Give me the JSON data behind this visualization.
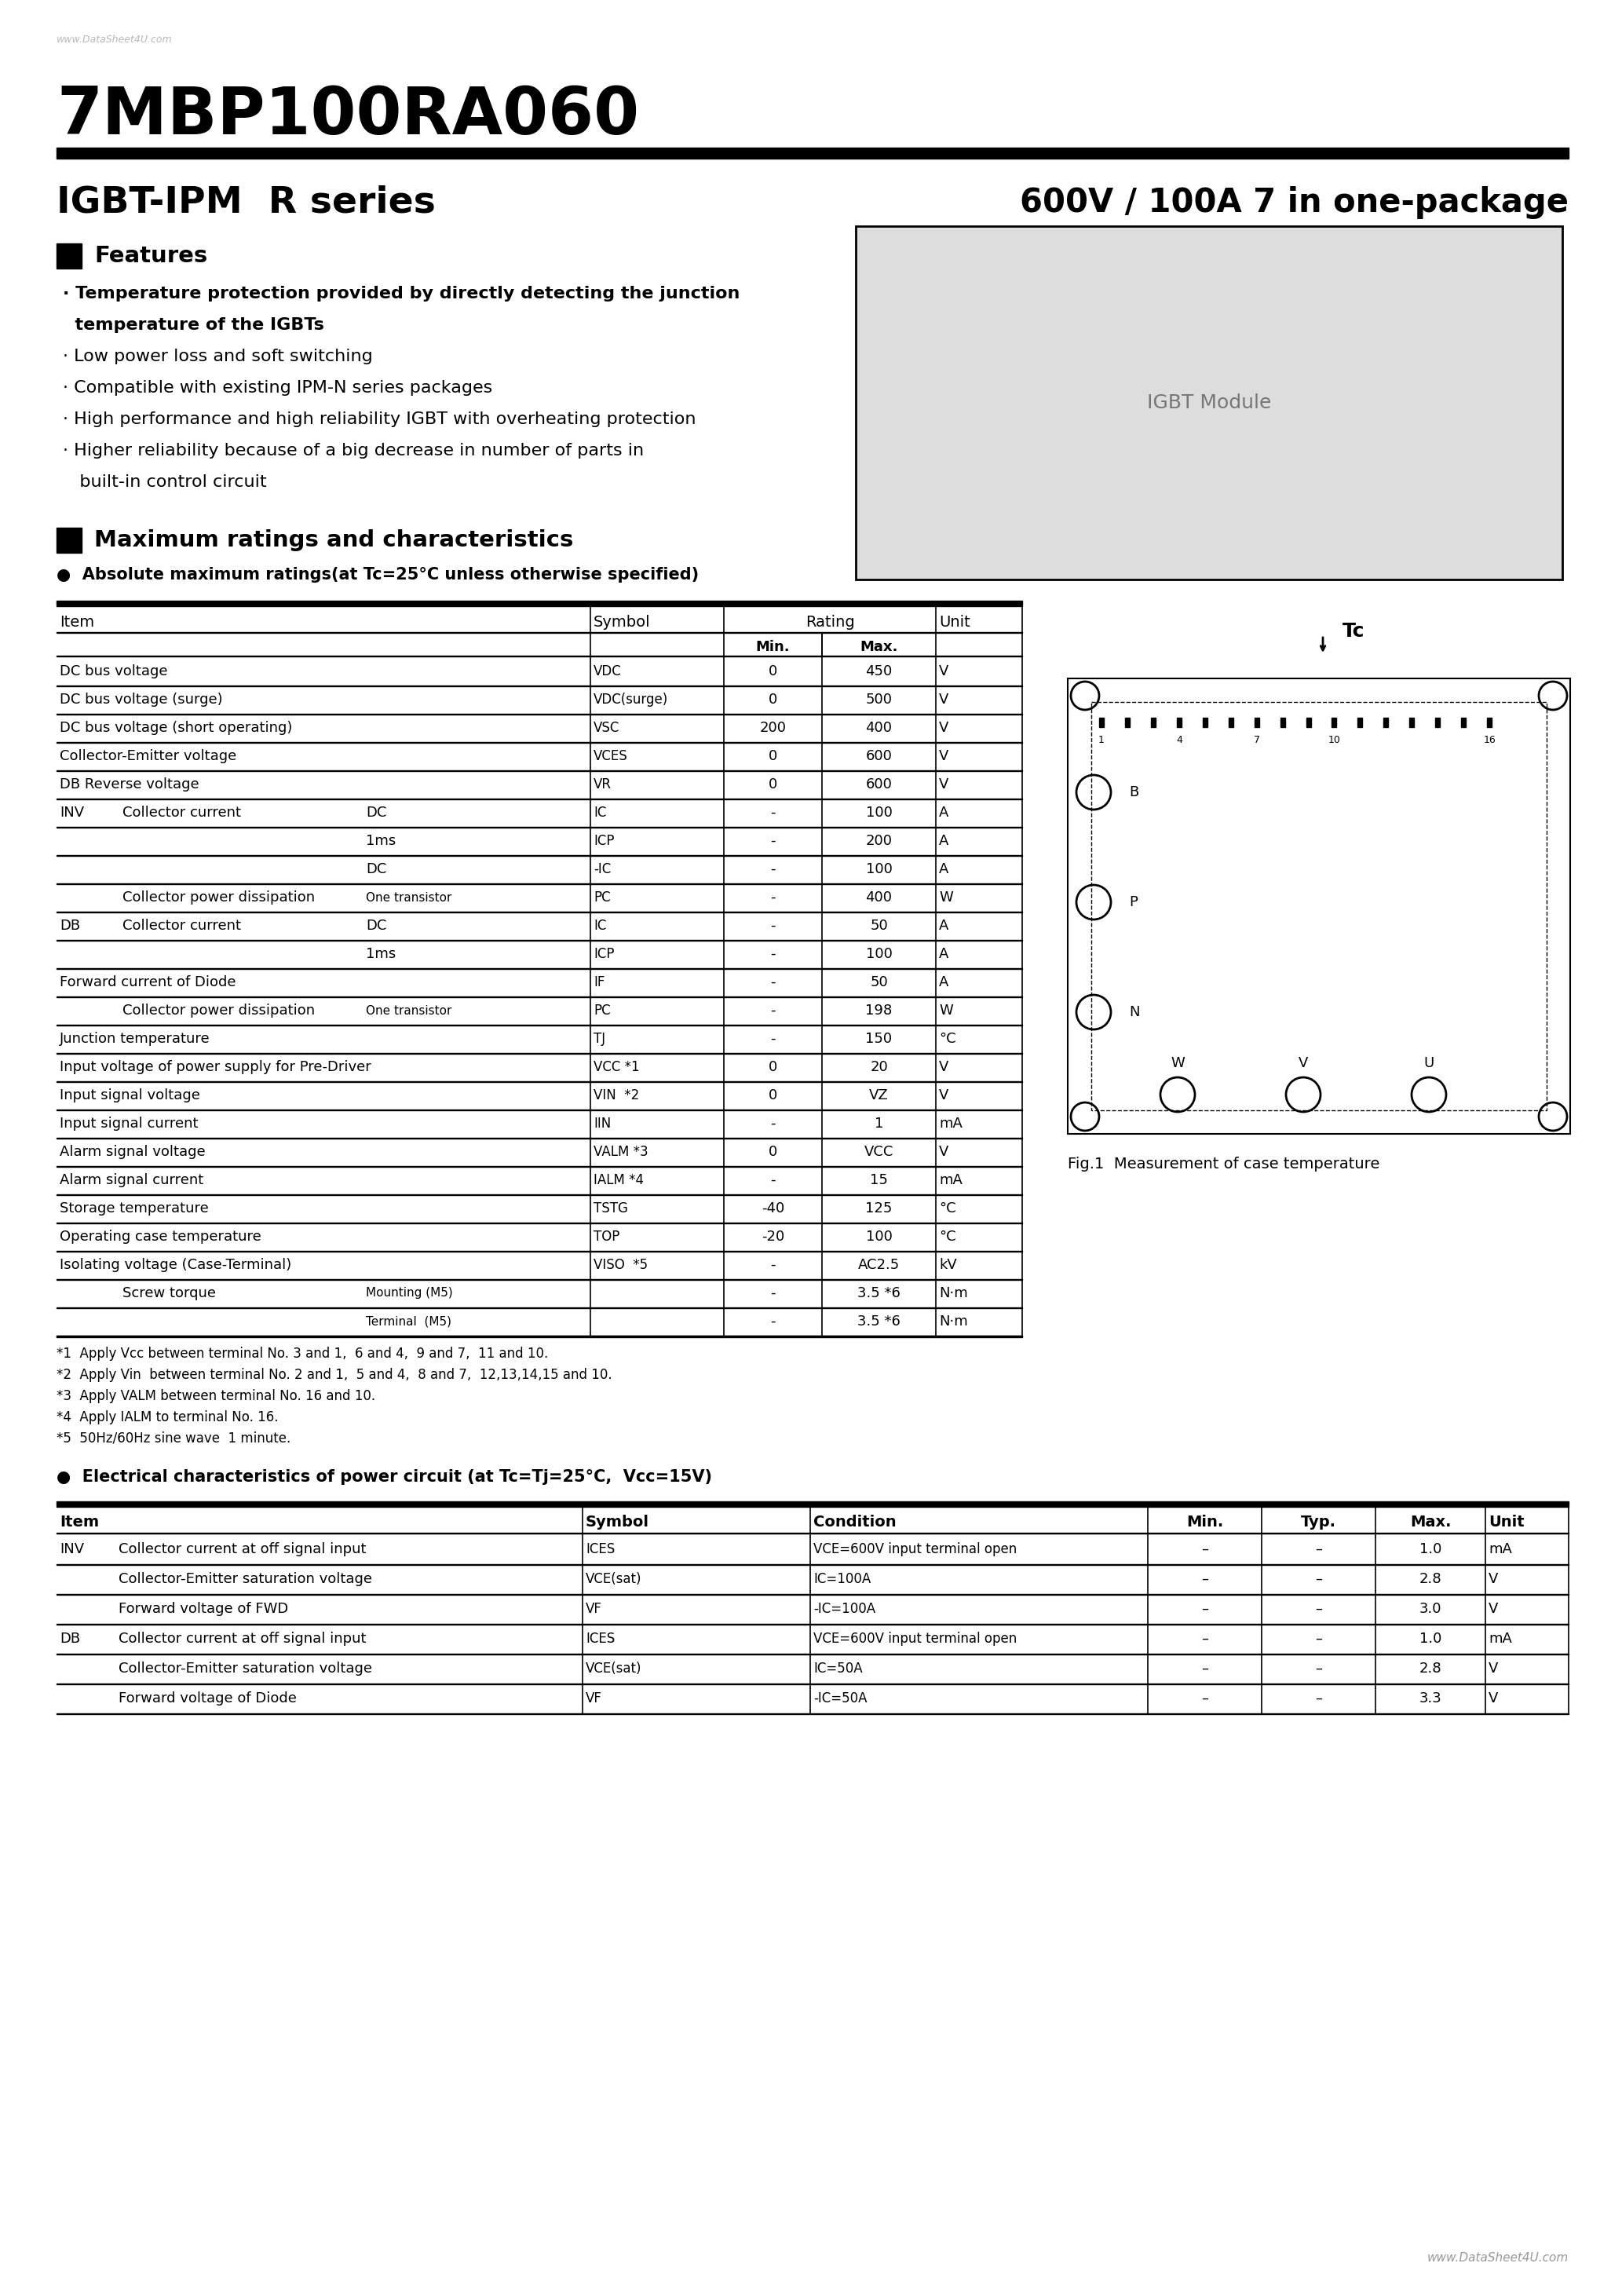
{
  "title": "7MBP100RA060",
  "subtitle_left": "IGBT-IPM  R series",
  "subtitle_right": "600V / 100A 7 in one-package",
  "watermark_top": "www.DataSheet4U.com",
  "watermark_bottom": "www.DataSheet4U.com",
  "features_title": "Features",
  "feature_lines": [
    [
      "· Temperature protection provided by directly detecting the junction",
      true
    ],
    [
      "  temperature of the IGBTs",
      true
    ],
    [
      "· Low power loss and soft switching",
      false
    ],
    [
      "· Compatible with existing IPM-N series packages",
      false
    ],
    [
      "· High performance and high reliability IGBT with overheating protection",
      false
    ],
    [
      "· Higher reliability because of a big decrease in number of parts in",
      false
    ],
    [
      "   built-in control circuit",
      false
    ]
  ],
  "max_ratings_title": "Maximum ratings and characteristics",
  "abs_max_subtitle": "Absolute maximum ratings(at Tc=25°C unless otherwise specified)",
  "table1_rows": [
    {
      "item": "DC bus voltage",
      "item2": "",
      "symbol": "VDC",
      "min": "0",
      "max": "450",
      "unit": "V",
      "prefix": "",
      "sub": ""
    },
    {
      "item": "DC bus voltage (surge)",
      "item2": "",
      "symbol": "VDC(surge)",
      "min": "0",
      "max": "500",
      "unit": "V",
      "prefix": "",
      "sub": ""
    },
    {
      "item": "DC bus voltage (short operating)",
      "item2": "",
      "symbol": "VSC",
      "min": "200",
      "max": "400",
      "unit": "V",
      "prefix": "",
      "sub": ""
    },
    {
      "item": "Collector-Emitter voltage",
      "item2": "",
      "symbol": "VCES",
      "min": "0",
      "max": "600",
      "unit": "V",
      "prefix": "",
      "sub": ""
    },
    {
      "item": "DB Reverse voltage",
      "item2": "",
      "symbol": "VR",
      "min": "0",
      "max": "600",
      "unit": "V",
      "prefix": "",
      "sub": ""
    },
    {
      "item": "Collector current",
      "item2": "",
      "symbol": "IC",
      "min": "-",
      "max": "100",
      "unit": "A",
      "prefix": "INV",
      "sub": "DC"
    },
    {
      "item": "",
      "item2": "",
      "symbol": "ICP",
      "min": "-",
      "max": "200",
      "unit": "A",
      "prefix": "",
      "sub": "1ms"
    },
    {
      "item": "",
      "item2": "",
      "symbol": "-IC",
      "min": "-",
      "max": "100",
      "unit": "A",
      "prefix": "",
      "sub": "DC"
    },
    {
      "item": "Collector power dissipation",
      "item2": "One transistor",
      "symbol": "PC",
      "min": "-",
      "max": "400",
      "unit": "W",
      "prefix": "",
      "sub": ""
    },
    {
      "item": "Collector current",
      "item2": "",
      "symbol": "IC",
      "min": "-",
      "max": "50",
      "unit": "A",
      "prefix": "DB",
      "sub": "DC"
    },
    {
      "item": "",
      "item2": "",
      "symbol": "ICP",
      "min": "-",
      "max": "100",
      "unit": "A",
      "prefix": "",
      "sub": "1ms"
    },
    {
      "item": "Forward current of Diode",
      "item2": "",
      "symbol": "IF",
      "min": "-",
      "max": "50",
      "unit": "A",
      "prefix": "",
      "sub": ""
    },
    {
      "item": "Collector power dissipation",
      "item2": "One transistor",
      "symbol": "PC",
      "min": "-",
      "max": "198",
      "unit": "W",
      "prefix": "",
      "sub": ""
    },
    {
      "item": "Junction temperature",
      "item2": "",
      "symbol": "TJ",
      "min": "-",
      "max": "150",
      "unit": "°C",
      "prefix": "",
      "sub": ""
    },
    {
      "item": "Input voltage of power supply for Pre-Driver",
      "item2": "",
      "symbol": "VCC *1",
      "min": "0",
      "max": "20",
      "unit": "V",
      "prefix": "",
      "sub": ""
    },
    {
      "item": "Input signal voltage",
      "item2": "",
      "symbol": "VIN  *2",
      "min": "0",
      "max": "VZ",
      "unit": "V",
      "prefix": "",
      "sub": ""
    },
    {
      "item": "Input signal current",
      "item2": "",
      "symbol": "IIN",
      "min": "-",
      "max": "1",
      "unit": "mA",
      "prefix": "",
      "sub": ""
    },
    {
      "item": "Alarm signal voltage",
      "item2": "",
      "symbol": "VALM *3",
      "min": "0",
      "max": "VCC",
      "unit": "V",
      "prefix": "",
      "sub": ""
    },
    {
      "item": "Alarm signal current",
      "item2": "",
      "symbol": "IALM *4",
      "min": "-",
      "max": "15",
      "unit": "mA",
      "prefix": "",
      "sub": ""
    },
    {
      "item": "Storage temperature",
      "item2": "",
      "symbol": "TSTG",
      "min": "-40",
      "max": "125",
      "unit": "°C",
      "prefix": "",
      "sub": ""
    },
    {
      "item": "Operating case temperature",
      "item2": "",
      "symbol": "TOP",
      "min": "-20",
      "max": "100",
      "unit": "°C",
      "prefix": "",
      "sub": ""
    },
    {
      "item": "Isolating voltage (Case-Terminal)",
      "item2": "",
      "symbol": "VISO  *5",
      "min": "-",
      "max": "AC2.5",
      "unit": "kV",
      "prefix": "",
      "sub": ""
    },
    {
      "item": "Screw torque",
      "item2": "Mounting (M5)",
      "symbol": "",
      "min": "-",
      "max": "3.5 *6",
      "unit": "N·m",
      "prefix": "",
      "sub": ""
    },
    {
      "item": "",
      "item2": "Terminal  (M5)",
      "symbol": "",
      "min": "-",
      "max": "3.5 *6",
      "unit": "N·m",
      "prefix": "",
      "sub": ""
    }
  ],
  "notes": [
    "*1  Apply Vcc between terminal No. 3 and 1,  6 and 4,  9 and 7,  11 and 10.",
    "*2  Apply Vin  between terminal No. 2 and 1,  5 and 4,  8 and 7,  12,13,14,15 and 10.",
    "*3  Apply VALM between terminal No. 16 and 10.",
    "*4  Apply IALM to terminal No. 16.",
    "*5  50Hz/60Hz sine wave  1 minute."
  ],
  "fig_caption": "Fig.1  Measurement of case temperature",
  "elec_subtitle": "Electrical characteristics of power circuit (at Tc=Tj=25°C,  Vcc=15V)",
  "table2_rows": [
    {
      "prefix": "INV",
      "item": "Collector current at off signal input",
      "symbol": "ICES",
      "cond": "VCE=600V input terminal open",
      "min": "–",
      "typ": "–",
      "max": "1.0",
      "unit": "mA"
    },
    {
      "prefix": "",
      "item": "Collector-Emitter saturation voltage",
      "symbol": "VCE(sat)",
      "cond": "IC=100A",
      "min": "–",
      "typ": "–",
      "max": "2.8",
      "unit": "V"
    },
    {
      "prefix": "",
      "item": "Forward voltage of FWD",
      "symbol": "VF",
      "cond": "-IC=100A",
      "min": "–",
      "typ": "–",
      "max": "3.0",
      "unit": "V"
    },
    {
      "prefix": "DB",
      "item": "Collector current at off signal input",
      "symbol": "ICES",
      "cond": "VCE=600V input terminal open",
      "min": "–",
      "typ": "–",
      "max": "1.0",
      "unit": "mA"
    },
    {
      "prefix": "",
      "item": "Collector-Emitter saturation voltage",
      "symbol": "VCE(sat)",
      "cond": "IC=50A",
      "min": "–",
      "typ": "–",
      "max": "2.8",
      "unit": "V"
    },
    {
      "prefix": "",
      "item": "Forward voltage of Diode",
      "symbol": "VF",
      "cond": "-IC=50A",
      "min": "–",
      "typ": "–",
      "max": "3.3",
      "unit": "V"
    }
  ]
}
